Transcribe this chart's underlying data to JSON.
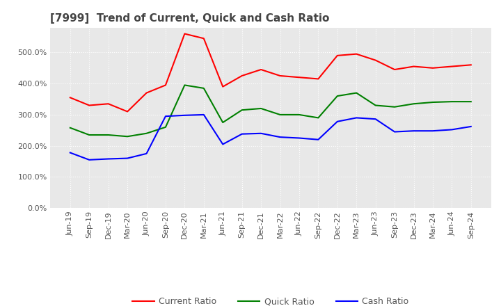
{
  "title": "[7999]  Trend of Current, Quick and Cash Ratio",
  "x_labels": [
    "Jun-19",
    "Sep-19",
    "Dec-19",
    "Mar-20",
    "Jun-20",
    "Sep-20",
    "Dec-20",
    "Mar-21",
    "Jun-21",
    "Sep-21",
    "Dec-21",
    "Mar-22",
    "Jun-22",
    "Sep-22",
    "Dec-22",
    "Mar-23",
    "Jun-23",
    "Sep-23",
    "Dec-23",
    "Mar-24",
    "Jun-24",
    "Sep-24"
  ],
  "current_ratio": [
    355,
    330,
    335,
    310,
    370,
    395,
    560,
    545,
    390,
    425,
    445,
    425,
    420,
    415,
    490,
    495,
    475,
    445,
    455,
    450,
    455,
    460
  ],
  "quick_ratio": [
    258,
    235,
    235,
    230,
    240,
    260,
    395,
    385,
    275,
    315,
    320,
    300,
    300,
    290,
    360,
    370,
    330,
    325,
    335,
    340,
    342,
    342
  ],
  "cash_ratio": [
    178,
    155,
    158,
    160,
    175,
    295,
    298,
    300,
    205,
    238,
    240,
    228,
    225,
    220,
    278,
    290,
    286,
    245,
    248,
    248,
    252,
    262
  ],
  "current_color": "#ff0000",
  "quick_color": "#008000",
  "cash_color": "#0000ff",
  "ylim": [
    0,
    580
  ],
  "yticks": [
    0,
    100,
    200,
    300,
    400,
    500
  ],
  "ytick_labels": [
    "0.0%",
    "100.0%",
    "200.0%",
    "300.0%",
    "400.0%",
    "500.0%"
  ],
  "background_color": "#ffffff",
  "plot_bg_color": "#e8e8e8",
  "grid_color": "#ffffff",
  "title_fontsize": 11,
  "tick_fontsize": 8,
  "legend_fontsize": 9
}
